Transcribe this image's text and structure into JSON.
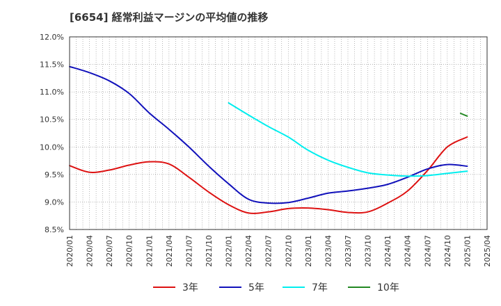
{
  "chart_data": {
    "type": "line",
    "title": "[6654]  経常利益マージンの平均値の推移",
    "xlabel": "",
    "ylabel": "",
    "ylim": [
      8.5,
      12.0
    ],
    "y_ticks": [
      "8.5%",
      "9.0%",
      "9.5%",
      "10.0%",
      "10.5%",
      "11.0%",
      "11.5%",
      "12.0%"
    ],
    "x_ticks": [
      "2020/01",
      "2020/04",
      "2020/07",
      "2020/10",
      "2021/01",
      "2021/04",
      "2021/07",
      "2021/10",
      "2022/01",
      "2022/04",
      "2022/07",
      "2022/10",
      "2023/01",
      "2023/04",
      "2023/07",
      "2023/10",
      "2024/01",
      "2024/04",
      "2024/07",
      "2024/10",
      "2025/01",
      "2025/04"
    ],
    "grid": true,
    "legend_position": "bottom",
    "series": [
      {
        "name": "3年",
        "color": "#dd1111",
        "x": [
          "2020/01",
          "2020/04",
          "2020/07",
          "2020/10",
          "2021/01",
          "2021/04",
          "2021/07",
          "2021/10",
          "2022/01",
          "2022/04",
          "2022/07",
          "2022/10",
          "2023/01",
          "2023/04",
          "2023/07",
          "2023/10",
          "2024/01",
          "2024/04",
          "2024/07",
          "2024/10",
          "2025/01"
        ],
        "values": [
          9.66,
          9.54,
          9.58,
          9.67,
          9.73,
          9.69,
          9.45,
          9.18,
          8.95,
          8.8,
          8.82,
          8.88,
          8.89,
          8.86,
          8.81,
          8.82,
          8.98,
          9.2,
          9.57,
          10.0,
          10.18
        ]
      },
      {
        "name": "5年",
        "color": "#1111bb",
        "x": [
          "2020/01",
          "2020/04",
          "2020/07",
          "2020/10",
          "2021/01",
          "2021/04",
          "2021/07",
          "2021/10",
          "2022/01",
          "2022/04",
          "2022/07",
          "2022/10",
          "2023/01",
          "2023/04",
          "2023/07",
          "2023/10",
          "2024/01",
          "2024/04",
          "2024/07",
          "2024/10",
          "2025/01"
        ],
        "values": [
          11.46,
          11.35,
          11.2,
          10.97,
          10.62,
          10.32,
          10.0,
          9.65,
          9.33,
          9.05,
          8.98,
          8.99,
          9.07,
          9.16,
          9.2,
          9.25,
          9.32,
          9.45,
          9.6,
          9.68,
          9.65
        ]
      },
      {
        "name": "7年",
        "color": "#00eeee",
        "x": [
          "2022/01",
          "2022/04",
          "2022/07",
          "2022/10",
          "2023/01",
          "2023/04",
          "2023/07",
          "2023/10",
          "2024/01",
          "2024/04",
          "2024/07",
          "2024/10",
          "2025/01"
        ],
        "values": [
          10.8,
          10.58,
          10.37,
          10.18,
          9.94,
          9.76,
          9.63,
          9.53,
          9.49,
          9.47,
          9.48,
          9.52,
          9.56
        ]
      },
      {
        "name": "10年",
        "color": "#228822",
        "x": [
          "2024/12",
          "2025/01"
        ],
        "values": [
          10.61,
          10.56
        ]
      }
    ]
  }
}
